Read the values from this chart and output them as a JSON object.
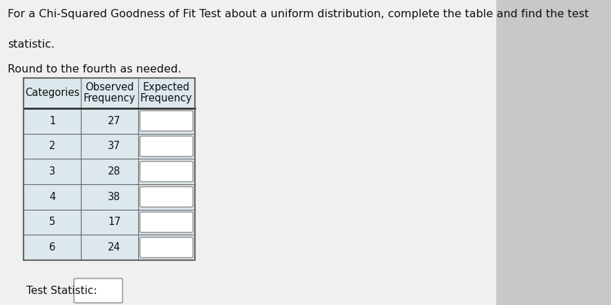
{
  "title_line1": "For a Chi-Squared Goodness of Fit Test about a uniform distribution, complete the table and find the test",
  "title_line2": "statistic.",
  "title_line3": "Round to the fourth as needed.",
  "col_headers_line1": [
    "Categories",
    "Observed",
    "Expected"
  ],
  "col_headers_line2": [
    "",
    "Frequency",
    "Frequency"
  ],
  "categories": [
    "1",
    "2",
    "3",
    "4",
    "5",
    "6"
  ],
  "observed": [
    "27",
    "37",
    "28",
    "38",
    "17",
    "24"
  ],
  "background_color": "#c8c8c8",
  "page_bg": "#f5f5f5",
  "header_bg": "#dde8ee",
  "cell_cat_bg": "#dde8ee",
  "cell_obs_bg": "#dde8ee",
  "cell_exp_bg": "#dde8ee",
  "input_box_bg": "#ffffff",
  "border_color": "#666666",
  "border_color_thick": "#333333",
  "text_color": "#111111",
  "font_size_title": 11.5,
  "font_size_table": 10.5,
  "test_statistic_label": "Test Statistic:"
}
